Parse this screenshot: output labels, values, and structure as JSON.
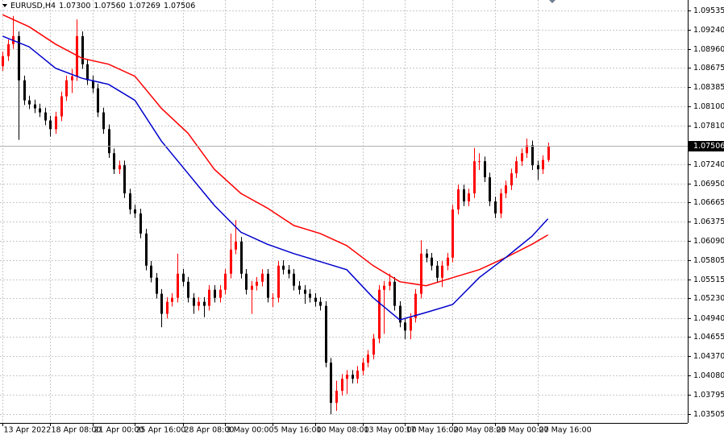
{
  "chart_data": {
    "type": "candlestick",
    "title": "EURUSD,H4",
    "title_values": [
      "1.07300",
      "1.07560",
      "1.07269",
      "1.07506"
    ],
    "up_color": "#ff0000",
    "down_color": "#000000",
    "open": [
      1.087,
      1.0885,
      1.0903,
      1.0915,
      1.0849,
      1.0819,
      1.0813,
      1.0807,
      1.0801,
      1.0789,
      1.0776,
      1.0795,
      1.0825,
      1.0849,
      1.0855,
      1.0915,
      1.0873,
      1.0849,
      1.0837,
      1.0801,
      1.0776,
      1.074,
      1.0716,
      1.0722,
      1.068,
      1.0656,
      1.065,
      1.062,
      1.0572,
      1.0554,
      1.053,
      1.05,
      1.0518,
      1.0524,
      1.056,
      1.0548,
      1.0524,
      1.0512,
      1.0518,
      1.0512,
      1.0536,
      1.0524,
      1.0536,
      1.056,
      1.0596,
      1.0608,
      1.056,
      1.0536,
      1.0542,
      1.0548,
      1.056,
      1.0524,
      1.0524,
      1.0572,
      1.0566,
      1.056,
      1.0542,
      1.0536,
      1.053,
      1.0524,
      1.0518,
      1.0512,
      1.0427,
      1.0367,
      1.0385,
      1.0403,
      1.0409,
      1.0403,
      1.0415,
      1.0427,
      1.0439,
      1.0463,
      1.0536,
      1.0542,
      1.0548,
      1.0512,
      1.0487,
      1.0475,
      1.0494,
      1.053,
      1.059,
      1.0584,
      1.0572,
      1.0554,
      1.0572,
      1.0584,
      1.0656,
      1.0686,
      1.0668,
      1.068,
      1.0728,
      1.0728,
      1.0704,
      1.0668,
      1.065,
      1.068,
      1.0692,
      1.071,
      1.0728,
      1.074,
      1.0752,
      1.0722,
      1.0716,
      1.073
    ],
    "high": [
      1.0892,
      1.091,
      1.0945,
      1.0922,
      1.0856,
      1.0826,
      1.082,
      1.0814,
      1.0808,
      1.0796,
      1.0802,
      1.0832,
      1.0856,
      1.0866,
      1.094,
      1.0922,
      1.088,
      1.0856,
      1.0844,
      1.0808,
      1.0783,
      1.0747,
      1.0729,
      1.0729,
      1.0687,
      1.0663,
      1.0657,
      1.0627,
      1.0579,
      1.0561,
      1.0537,
      1.0525,
      1.0531,
      1.059,
      1.0567,
      1.0555,
      1.0531,
      1.0525,
      1.0525,
      1.0543,
      1.0543,
      1.0543,
      1.0567,
      1.062,
      1.064,
      1.0615,
      1.0567,
      1.0549,
      1.0555,
      1.0567,
      1.0567,
      1.0531,
      1.0579,
      1.058,
      1.0573,
      1.0567,
      1.0549,
      1.0543,
      1.0537,
      1.0531,
      1.0525,
      1.0519,
      1.0434,
      1.04,
      1.041,
      1.0416,
      1.0416,
      1.0422,
      1.0434,
      1.0446,
      1.047,
      1.0543,
      1.0549,
      1.056,
      1.0555,
      1.0519,
      1.0494,
      1.0501,
      1.0537,
      1.061,
      1.0597,
      1.0591,
      1.0579,
      1.0579,
      1.0591,
      1.0663,
      1.0693,
      1.0693,
      1.0687,
      1.0748,
      1.074,
      1.0735,
      1.0711,
      1.0675,
      1.0687,
      1.0699,
      1.0717,
      1.0735,
      1.0747,
      1.0762,
      1.0759,
      1.0729,
      1.0737,
      1.0756
    ],
    "low": [
      1.0863,
      1.0878,
      1.0896,
      1.076,
      1.0812,
      1.0806,
      1.08,
      1.0794,
      1.0782,
      1.0765,
      1.0769,
      1.0788,
      1.0818,
      1.083,
      1.0848,
      1.0866,
      1.0842,
      1.083,
      1.0794,
      1.0769,
      1.0733,
      1.0709,
      1.0709,
      1.0673,
      1.0649,
      1.0643,
      1.0613,
      1.0565,
      1.0547,
      1.0523,
      1.048,
      1.0493,
      1.0511,
      1.0517,
      1.0541,
      1.0517,
      1.05,
      1.0505,
      1.0495,
      1.0505,
      1.0517,
      1.0517,
      1.0529,
      1.0553,
      1.0589,
      1.0553,
      1.0529,
      1.05,
      1.0535,
      1.0541,
      1.0517,
      1.051,
      1.0517,
      1.0559,
      1.0553,
      1.0535,
      1.0529,
      1.0515,
      1.0517,
      1.0511,
      1.0505,
      1.042,
      1.035,
      1.0355,
      1.0378,
      1.038,
      1.0396,
      1.0396,
      1.0408,
      1.042,
      1.0432,
      1.0456,
      1.047,
      1.0535,
      1.0505,
      1.048,
      1.0462,
      1.0462,
      1.0487,
      1.0523,
      1.0577,
      1.0565,
      1.0547,
      1.054,
      1.0565,
      1.0577,
      1.0649,
      1.0661,
      1.0661,
      1.0673,
      1.0715,
      1.0697,
      1.0661,
      1.0643,
      1.0643,
      1.0673,
      1.0685,
      1.0703,
      1.0721,
      1.0733,
      1.0715,
      1.07,
      1.0709,
      1.07269
    ],
    "close": [
      1.0885,
      1.0903,
      1.0915,
      1.0849,
      1.0819,
      1.0813,
      1.0807,
      1.0801,
      1.0789,
      1.0776,
      1.0795,
      1.0825,
      1.0849,
      1.0855,
      1.0915,
      1.0873,
      1.0849,
      1.0837,
      1.0801,
      1.0776,
      1.074,
      1.0716,
      1.0722,
      1.068,
      1.0656,
      1.065,
      1.062,
      1.0572,
      1.0554,
      1.053,
      1.05,
      1.0518,
      1.0524,
      1.056,
      1.0548,
      1.0524,
      1.0512,
      1.0518,
      1.0512,
      1.0536,
      1.0524,
      1.0536,
      1.056,
      1.0596,
      1.0608,
      1.056,
      1.0536,
      1.0542,
      1.0548,
      1.056,
      1.0524,
      1.0524,
      1.0572,
      1.0566,
      1.056,
      1.0542,
      1.0536,
      1.053,
      1.0524,
      1.0518,
      1.0512,
      1.0427,
      1.0367,
      1.0385,
      1.0403,
      1.0409,
      1.0403,
      1.0415,
      1.0427,
      1.0439,
      1.0463,
      1.0536,
      1.0542,
      1.0548,
      1.0512,
      1.0487,
      1.0475,
      1.0494,
      1.053,
      1.059,
      1.0584,
      1.0572,
      1.0554,
      1.0572,
      1.0584,
      1.0656,
      1.0686,
      1.0668,
      1.068,
      1.0728,
      1.0728,
      1.0704,
      1.0668,
      1.065,
      1.068,
      1.0692,
      1.071,
      1.0728,
      1.074,
      1.0752,
      1.0722,
      1.0716,
      1.073,
      1.07506
    ],
    "series": [
      {
        "color": "#ff0000",
        "x": [
          0,
          5,
          10,
          15,
          20,
          25,
          30,
          35,
          40,
          45,
          50,
          55,
          60,
          65,
          70,
          75,
          80,
          85,
          90,
          95,
          100,
          103
        ],
        "values": [
          1.0947,
          1.0929,
          1.0903,
          1.0882,
          1.0873,
          1.0855,
          1.0807,
          1.077,
          1.0716,
          1.068,
          1.0658,
          1.0632,
          1.062,
          1.0602,
          1.0572,
          1.0548,
          1.0542,
          1.0554,
          1.0566,
          1.0584,
          1.0604,
          1.0618
        ]
      },
      {
        "color": "#0000cc",
        "x": [
          0,
          5,
          10,
          15,
          20,
          25,
          30,
          35,
          40,
          45,
          50,
          55,
          60,
          65,
          70,
          75,
          80,
          85,
          90,
          95,
          100,
          103
        ],
        "values": [
          1.0915,
          1.0899,
          1.0867,
          1.0852,
          1.0843,
          1.0819,
          1.0758,
          1.071,
          1.0662,
          1.0622,
          1.0604,
          1.059,
          1.0578,
          1.0566,
          1.0524,
          1.0491,
          1.0502,
          1.0514,
          1.0554,
          1.0584,
          1.0616,
          1.0642
        ]
      }
    ],
    "xlim": [
      -0.5,
      129.4
    ],
    "ylim": [
      1.0337,
      1.0969
    ],
    "xticks": [
      {
        "value": 0,
        "label": "13 Apr 2022"
      },
      {
        "value": 9,
        "label": "18 Apr 08:00"
      },
      {
        "value": 17,
        "label": "21 Apr 00:00"
      },
      {
        "value": 25,
        "label": "25 Apr 16:00"
      },
      {
        "value": 34,
        "label": "28 Apr 08:00"
      },
      {
        "value": 42,
        "label": "3 May 00:00"
      },
      {
        "value": 51,
        "label": "5 May 16:00"
      },
      {
        "value": 59,
        "label": "10 May 08:00"
      },
      {
        "value": 68,
        "label": "13 May 00:00"
      },
      {
        "value": 76,
        "label": "17 May 16:00"
      },
      {
        "value": 85,
        "label": "20 May 08:00"
      },
      {
        "value": 93,
        "label": "25 May 00:00"
      },
      {
        "value": 101,
        "label": "27 May 16:00"
      }
    ],
    "yticks": [
      1.09535,
      {
        "value": 1.0924,
        "label": "1.09240"
      },
      {
        "value": 1.0896,
        "label": "1.08960"
      },
      1.08675,
      1.08385,
      {
        "value": 1.081,
        "label": "1.08100"
      },
      {
        "value": 1.0781,
        "label": "1.07810"
      },
      {
        "value": 1.0724,
        "label": "1.07240"
      },
      {
        "value": 1.0695,
        "label": "1.06950"
      },
      1.06665,
      1.06375,
      {
        "value": 1.0609,
        "label": "1.06090"
      },
      1.05805,
      1.05515,
      {
        "value": 1.0523,
        "label": "1.05230"
      },
      {
        "value": 1.0494,
        "label": "1.04940"
      },
      1.04655,
      {
        "value": 1.0437,
        "label": "1.04370"
      },
      {
        "value": 1.0408,
        "label": "1.04080"
      },
      1.03795,
      1.03505
    ],
    "grid": true
  }
}
